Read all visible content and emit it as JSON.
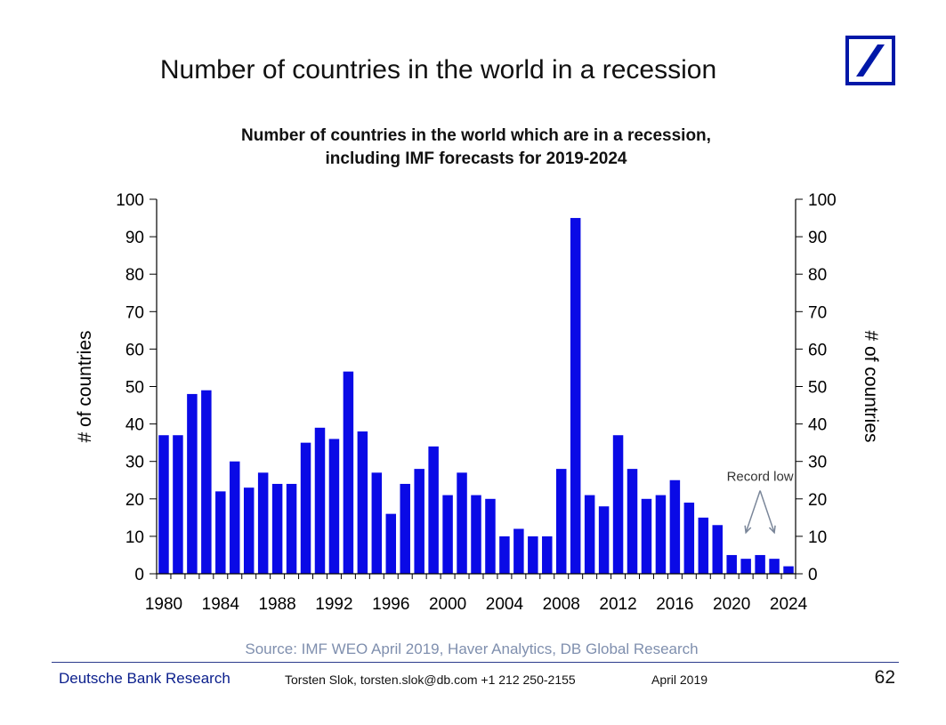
{
  "slide": {
    "title": "Number of countries in the world in a recession",
    "source": "Source: IMF WEO April 2019, Haver Analytics, DB Global Research",
    "footer": {
      "brand": "Deutsche Bank Research",
      "author": "Torsten Slok, torsten.slok@db.com  +1 212 250-2155",
      "date": "April 2019",
      "page_number": "62"
    },
    "logo": {
      "icon": "deutsche-bank-logo-icon",
      "color": "#0018a8"
    }
  },
  "chart_data": {
    "type": "bar",
    "title": "Number of countries in the world which are in a recession, including IMF forecasts for 2019-2024",
    "title_lines": [
      "Number of countries in the world which are in a recession,",
      "including IMF forecasts for 2019-2024"
    ],
    "ylabel": "# of countries",
    "ylabel_right": "# of countries",
    "ylim": [
      0,
      100
    ],
    "yticks": [
      0,
      10,
      20,
      30,
      40,
      50,
      60,
      70,
      80,
      90,
      100
    ],
    "xlim": [
      1980,
      2024
    ],
    "xticks": [
      1980,
      1984,
      1988,
      1992,
      1996,
      2000,
      2004,
      2008,
      2012,
      2016,
      2020,
      2024
    ],
    "categories": [
      1980,
      1981,
      1982,
      1983,
      1984,
      1985,
      1986,
      1987,
      1988,
      1989,
      1990,
      1991,
      1992,
      1993,
      1994,
      1995,
      1996,
      1997,
      1998,
      1999,
      2000,
      2001,
      2002,
      2003,
      2004,
      2005,
      2006,
      2007,
      2008,
      2009,
      2010,
      2011,
      2012,
      2013,
      2014,
      2015,
      2016,
      2017,
      2018,
      2019,
      2020,
      2021,
      2022,
      2023,
      2024
    ],
    "values": [
      37,
      37,
      48,
      49,
      22,
      30,
      23,
      27,
      24,
      24,
      35,
      39,
      36,
      54,
      38,
      27,
      16,
      24,
      28,
      34,
      21,
      27,
      21,
      20,
      10,
      12,
      10,
      10,
      28,
      95,
      21,
      18,
      37,
      28,
      20,
      21,
      25,
      19,
      15,
      13,
      5,
      4,
      5,
      4,
      2
    ],
    "bar_color": "#0a0ae6",
    "grid": false,
    "annotation": {
      "text": "Record low",
      "x": 2022,
      "y": 26,
      "arrow_targets": [
        2021,
        2023
      ],
      "arrow_target_y": 11,
      "color": "#7a8699"
    }
  }
}
